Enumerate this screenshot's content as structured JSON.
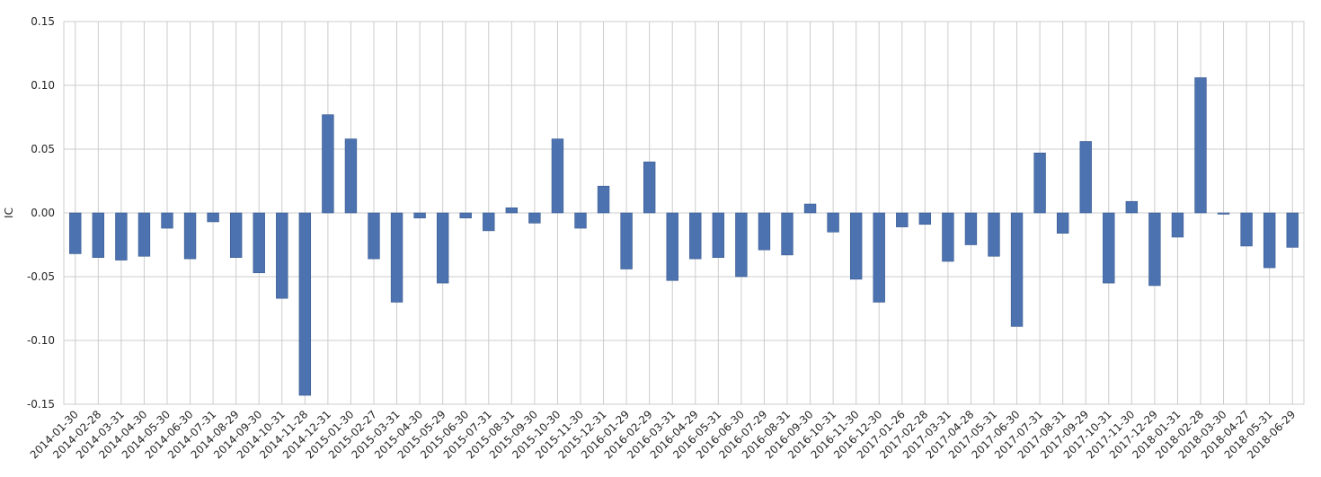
{
  "chart_data": {
    "type": "bar",
    "title": "",
    "xlabel": "",
    "ylabel": "IC",
    "ylim": [
      -0.15,
      0.15
    ],
    "yticks": [
      -0.15,
      -0.1,
      -0.05,
      0.0,
      0.05,
      0.1,
      0.15
    ],
    "ytick_labels": [
      "-0.15",
      "-0.10",
      "-0.05",
      "0.00",
      "0.05",
      "0.10",
      "0.15"
    ],
    "grid": true,
    "bar_color": "#4c72b0",
    "categories": [
      "2014-01-30",
      "2014-02-28",
      "2014-03-31",
      "2014-04-30",
      "2014-05-30",
      "2014-06-30",
      "2014-07-31",
      "2014-08-29",
      "2014-09-30",
      "2014-10-31",
      "2014-11-28",
      "2014-12-31",
      "2015-01-30",
      "2015-02-27",
      "2015-03-31",
      "2015-04-30",
      "2015-05-29",
      "2015-06-30",
      "2015-07-31",
      "2015-08-31",
      "2015-09-30",
      "2015-10-30",
      "2015-11-30",
      "2015-12-31",
      "2016-01-29",
      "2016-02-29",
      "2016-03-31",
      "2016-04-29",
      "2016-05-31",
      "2016-06-30",
      "2016-07-29",
      "2016-08-31",
      "2016-09-30",
      "2016-10-31",
      "2016-11-30",
      "2016-12-30",
      "2017-01-26",
      "2017-02-28",
      "2017-03-31",
      "2017-04-28",
      "2017-05-31",
      "2017-06-30",
      "2017-07-31",
      "2017-08-31",
      "2017-09-29",
      "2017-10-31",
      "2017-11-30",
      "2017-12-29",
      "2018-01-31",
      "2018-02-28",
      "2018-03-30",
      "2018-04-27",
      "2018-05-31",
      "2018-06-29"
    ],
    "values": [
      -0.032,
      -0.035,
      -0.037,
      -0.034,
      -0.012,
      -0.036,
      -0.007,
      -0.035,
      -0.047,
      -0.067,
      -0.143,
      0.077,
      0.058,
      -0.036,
      -0.07,
      -0.004,
      -0.055,
      -0.004,
      -0.014,
      0.004,
      -0.008,
      0.058,
      -0.012,
      0.021,
      -0.044,
      0.04,
      -0.053,
      -0.036,
      -0.035,
      -0.05,
      -0.029,
      -0.033,
      0.007,
      -0.015,
      -0.052,
      -0.07,
      -0.011,
      -0.009,
      -0.038,
      -0.025,
      -0.034,
      -0.089,
      0.047,
      -0.016,
      0.056,
      -0.055,
      0.009,
      -0.057,
      -0.019,
      0.106,
      -0.001,
      -0.026,
      -0.043,
      -0.027
    ]
  }
}
